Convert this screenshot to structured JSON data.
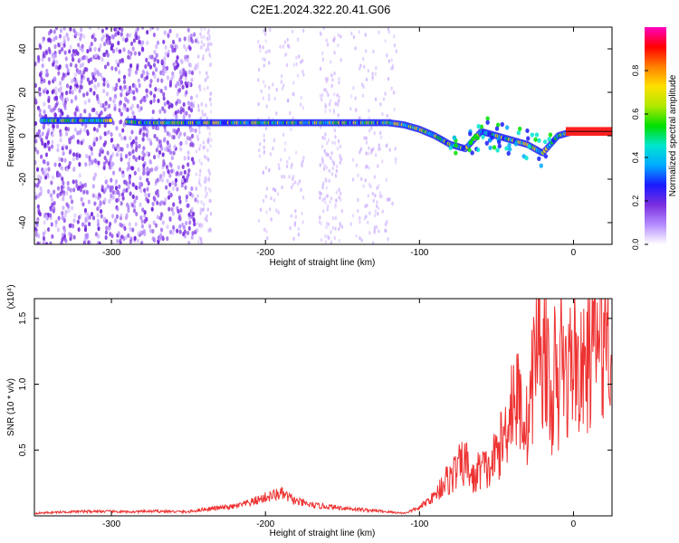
{
  "title": "C2E1.2024.322.20.41.G06",
  "colors": {
    "snr_line": "#ee3333",
    "frame": "#000000",
    "spectrogram_noise": "#7b2fe0",
    "spectrogram_peak": "#ff2020"
  },
  "chart_data": [
    {
      "type": "heatmap",
      "xlabel": "Height of straight line (km)",
      "ylabel": "Frequency (Hz)",
      "xlim": [
        -350,
        25
      ],
      "ylim": [
        -50,
        50
      ],
      "xticks": [
        -300,
        -200,
        -100,
        0
      ],
      "xtick_labels": [
        "-300",
        "-200",
        "-100",
        "0"
      ],
      "yticks": [
        -40,
        -20,
        0,
        20,
        40
      ],
      "ytick_labels": [
        "-40",
        "-20",
        "0",
        "20",
        "40"
      ],
      "colorbar": {
        "label": "Normalized spectral amplitude",
        "range": [
          0,
          1
        ],
        "ticks": [
          0.0,
          0.2,
          0.4,
          0.6,
          0.8
        ],
        "tick_labels": [
          "0.0",
          "0.2",
          "0.4",
          "0.6",
          "0.8"
        ],
        "colors": [
          "#ffffff",
          "#b58cff",
          "#7b2fe0",
          "#1a1aff",
          "#00aaff",
          "#00e5d0",
          "#00e000",
          "#b0e800",
          "#ffe000",
          "#ff8000",
          "#ff0000",
          "#ff00c0"
        ]
      },
      "ridge": {
        "x": [
          -340,
          -320,
          -300,
          -280,
          -260,
          -240,
          -220,
          -200,
          -180,
          -160,
          -140,
          -120,
          -110,
          -100,
          -90,
          -80,
          -70,
          -60,
          -50,
          -40,
          -30,
          -20,
          -10,
          0,
          10,
          25
        ],
        "frequency": [
          7,
          7,
          7,
          6,
          6,
          6,
          6,
          6,
          6,
          6,
          6,
          6,
          5,
          3,
          0,
          -4,
          -6,
          2,
          0,
          -2,
          -4,
          -8,
          0,
          2,
          2,
          2
        ]
      },
      "grid": false
    },
    {
      "type": "line",
      "xlabel": "Height of straight line (km)",
      "ylabel": "SNR (10 * v/v)",
      "y_multiplier": "(x10⁴)",
      "xlim": [
        -350,
        25
      ],
      "ylim": [
        0,
        16500
      ],
      "xticks": [
        -300,
        -200,
        -100,
        0
      ],
      "xtick_labels": [
        "-300",
        "-200",
        "-100",
        "0"
      ],
      "yticks": [
        5000,
        10000,
        15000
      ],
      "ytick_labels": [
        "0.5",
        "1.0",
        "1.5"
      ],
      "series": [
        {
          "x": [
            -350,
            -330,
            -310,
            -290,
            -270,
            -250,
            -240,
            -230,
            -220,
            -210,
            -200,
            -190,
            -180,
            -170,
            -160,
            -150,
            -140,
            -130,
            -120,
            -110,
            -100,
            -95,
            -90,
            -85,
            -80,
            -75,
            -70,
            -65,
            -60,
            -55,
            -50,
            -45,
            -40,
            -35,
            -30,
            -25,
            -22,
            -20,
            -18,
            -15,
            -12,
            -10,
            -8,
            -5,
            0,
            5,
            10,
            15,
            20,
            25
          ],
          "y": [
            200,
            300,
            350,
            300,
            350,
            300,
            500,
            600,
            700,
            1000,
            1400,
            1700,
            1100,
            800,
            700,
            600,
            500,
            400,
            300,
            200,
            600,
            1100,
            1500,
            2600,
            3000,
            3800,
            4300,
            2800,
            4000,
            3500,
            5000,
            6200,
            9500,
            9000,
            7000,
            12500,
            16500,
            11500,
            14000,
            7500,
            12000,
            8000,
            14000,
            10500,
            13000,
            11000,
            12500,
            14000,
            14500,
            15500
          ]
        }
      ],
      "grid": false
    }
  ]
}
